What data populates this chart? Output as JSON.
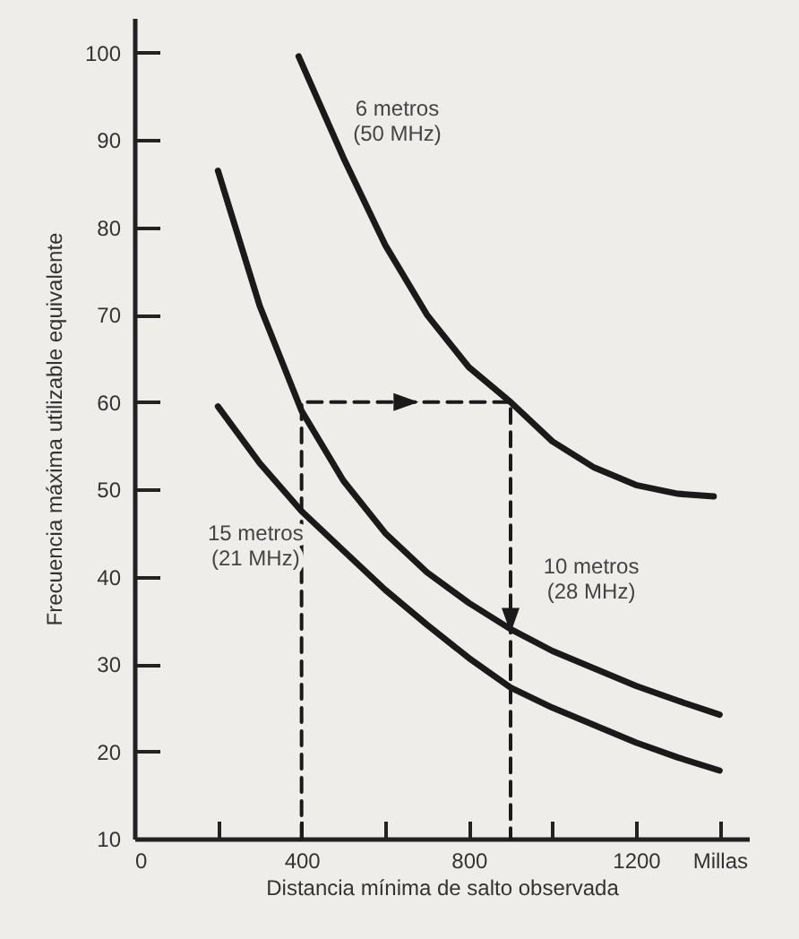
{
  "chart_data": {
    "type": "line",
    "xlabel": "Distancia mínima de salto observada",
    "ylabel": "Frecuencia máxima utilizable equivalente",
    "xlim": [
      0,
      1470
    ],
    "ylim": [
      10,
      104
    ],
    "xticks": [
      0,
      {
        "value": 200,
        "label": null
      },
      400,
      {
        "value": 600,
        "label": null
      },
      800,
      {
        "value": 1000,
        "label": null
      },
      1200,
      {
        "value": 1400,
        "label": "Millas"
      }
    ],
    "yticks": [
      10,
      20,
      30,
      40,
      50,
      60,
      70,
      80,
      90,
      100
    ],
    "grid": false,
    "marker": "none",
    "series": [
      {
        "name": "6 metros\n(50 MHz)",
        "color": "#1a1a1a",
        "x": [
          393,
          500,
          600,
          700,
          800,
          900,
          1000,
          1100,
          1200,
          1300,
          1386
        ],
        "values": [
          99.6,
          88,
          78,
          70,
          64,
          60,
          55.5,
          52.5,
          50.5,
          49.5,
          49.2
        ]
      },
      {
        "name": "10 metros\n(28 MHz)",
        "color": "#1a1a1a",
        "x": [
          200,
          300,
          400,
          500,
          600,
          700,
          800,
          900,
          1000,
          1100,
          1200,
          1300,
          1400
        ],
        "values": [
          86.5,
          71,
          59,
          51,
          45,
          40.5,
          37,
          34,
          31.5,
          29.5,
          27.5,
          25.8,
          24.2
        ]
      },
      {
        "name": "15 metros\n(21 MHz)",
        "color": "#1a1a1a",
        "x": [
          200,
          300,
          400,
          500,
          600,
          700,
          800,
          900,
          1000,
          1100,
          1200,
          1300,
          1400
        ],
        "values": [
          59.5,
          53,
          47.5,
          43,
          38.5,
          34.5,
          30.7,
          27.3,
          25,
          23,
          21,
          19.3,
          17.8
        ]
      },
      {
        "color": "#1a1a1a",
        "line_style": "dashed",
        "x": [
          400,
          400,
          900,
          900
        ],
        "values": [
          10,
          60,
          60,
          10
        ]
      }
    ]
  }
}
